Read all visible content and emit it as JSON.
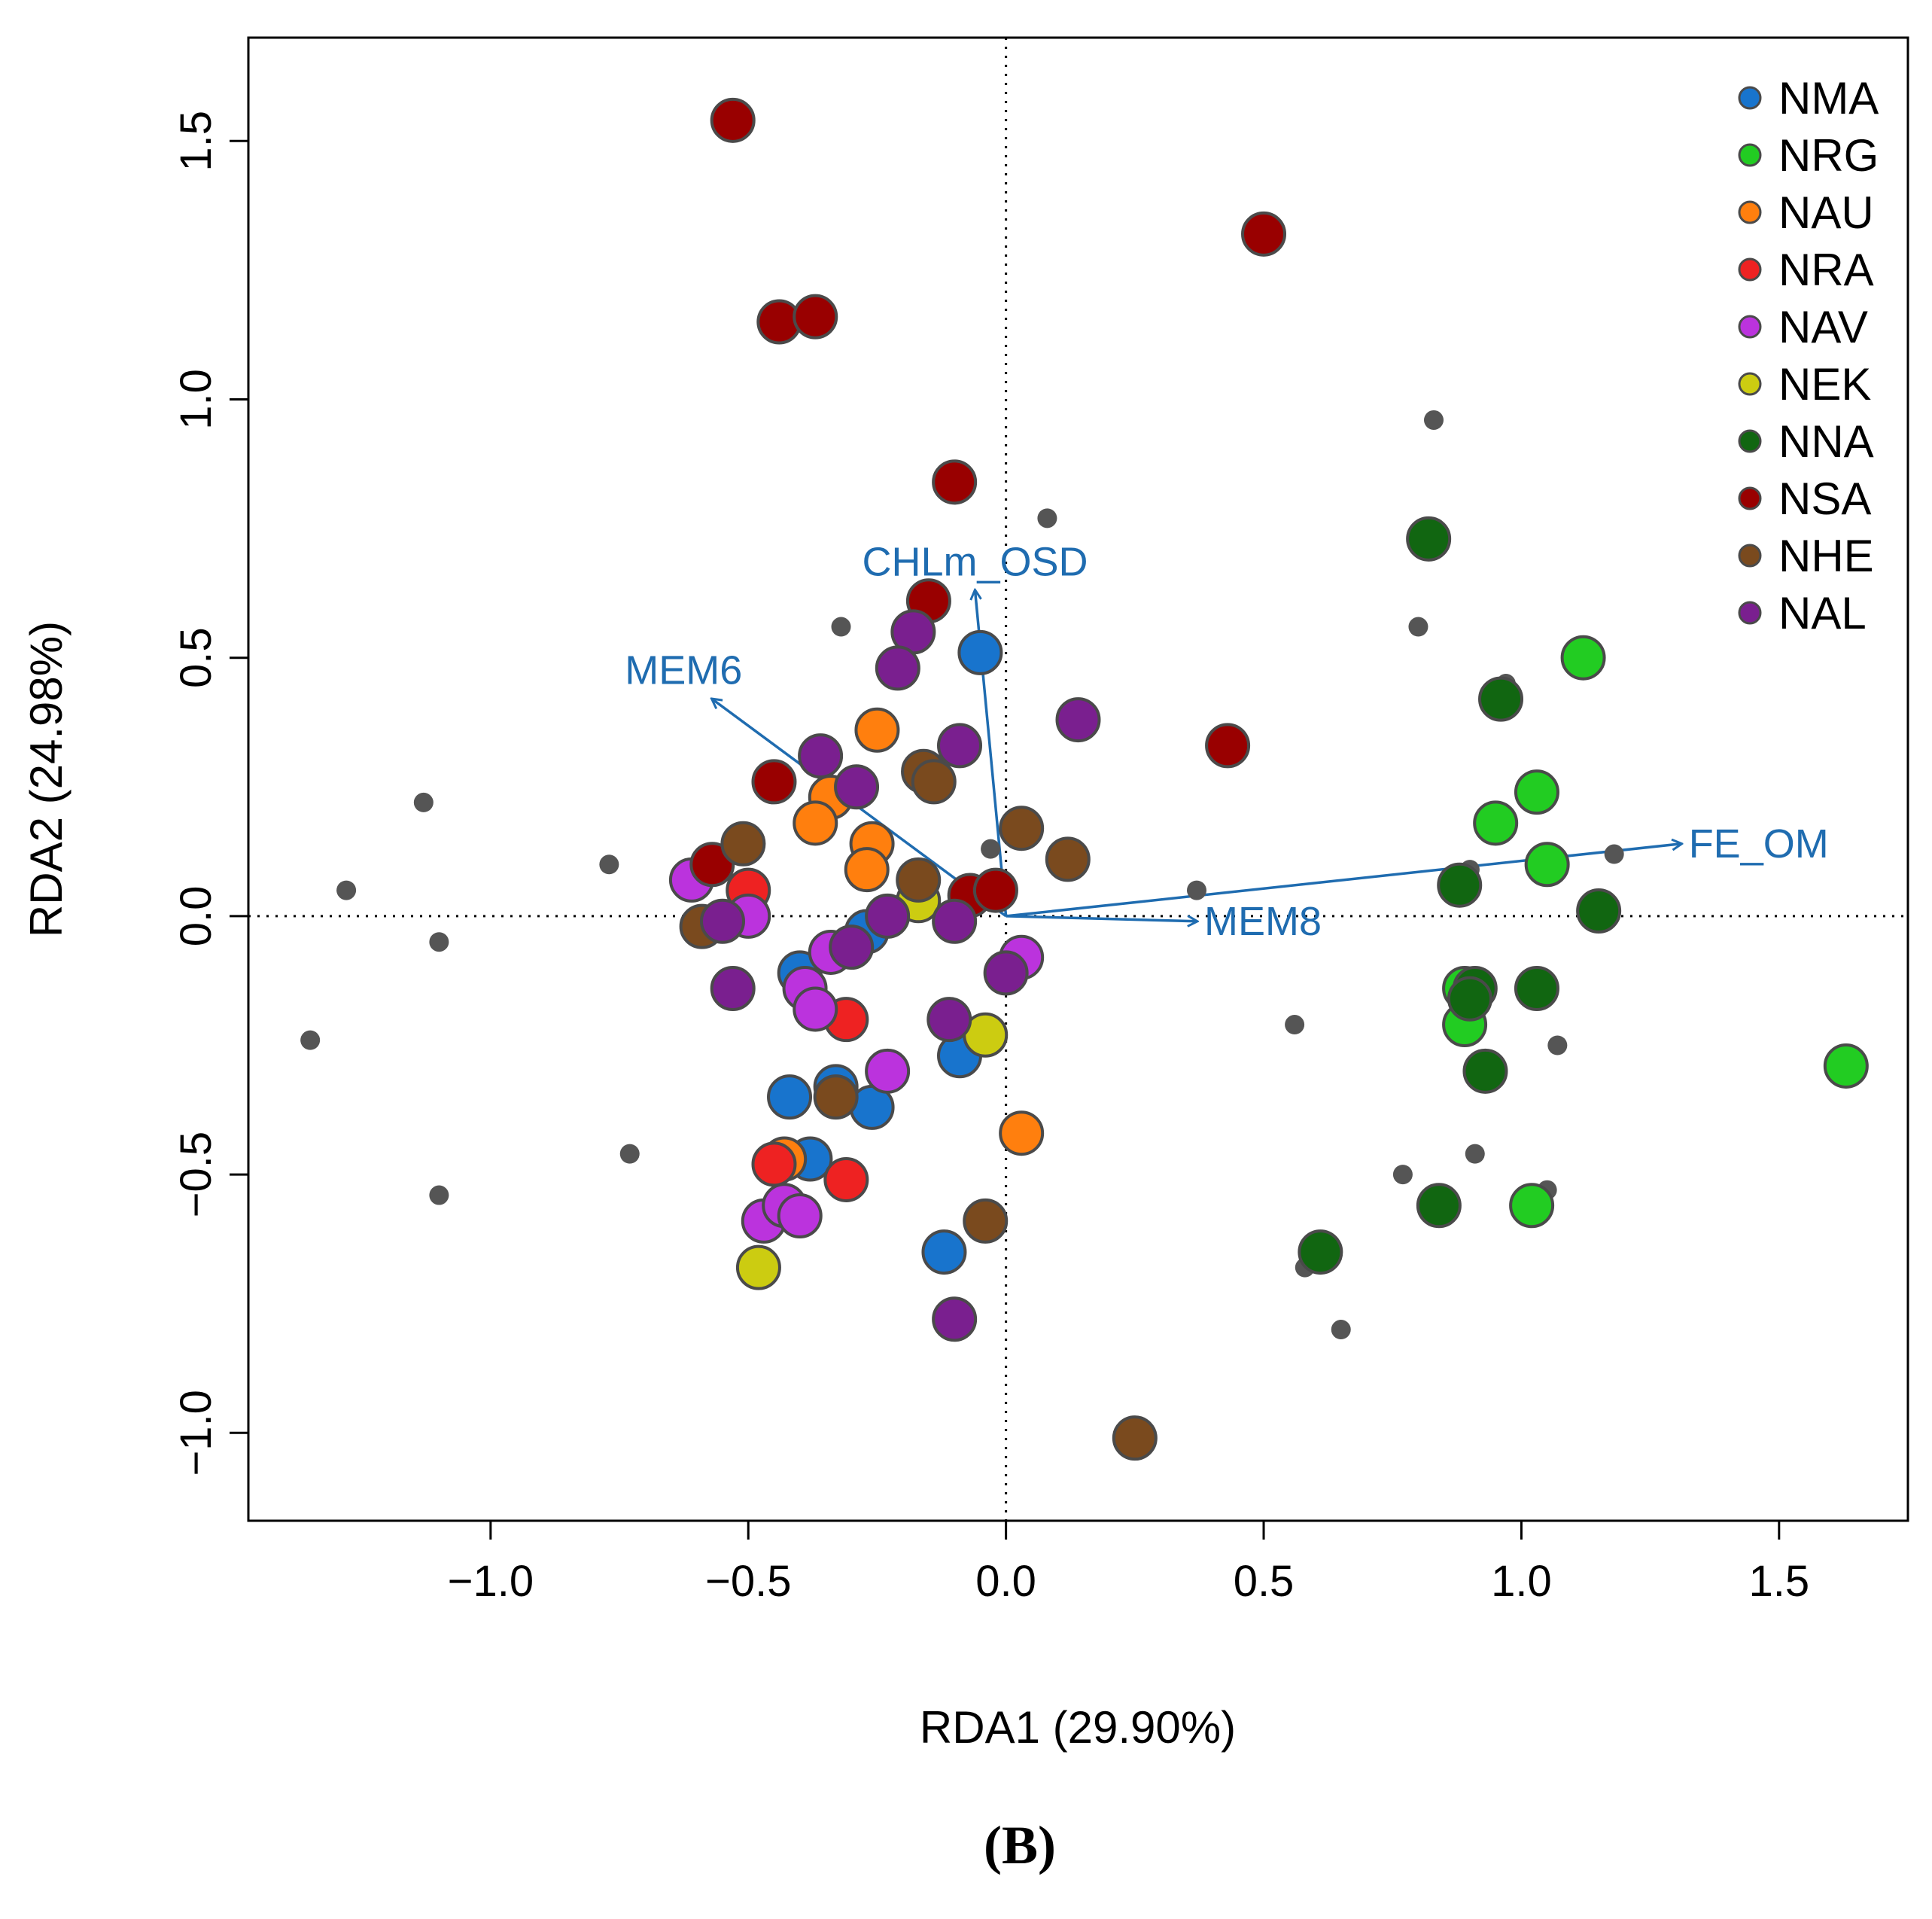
{
  "chart_data": {
    "type": "scatter",
    "title": "",
    "panel_label": "(B)",
    "xlabel": "RDA1 (29.90%)",
    "ylabel": "RDA2 (24.98%)",
    "xlim": [
      -1.47,
      1.75
    ],
    "ylim": [
      -1.17,
      1.7
    ],
    "xticks": [
      -1.0,
      -0.5,
      0.0,
      0.5,
      1.0,
      1.5
    ],
    "xtick_labels": [
      "−1.0",
      "−0.5",
      "0.0",
      "0.5",
      "1.0",
      "1.5"
    ],
    "yticks": [
      -1.0,
      -0.5,
      0.0,
      0.5,
      1.0,
      1.5
    ],
    "ytick_labels": [
      "−1.0",
      "−0.5",
      "0.0",
      "0.5",
      "1.0",
      "1.5"
    ],
    "grid": false,
    "reference_lines": {
      "x": 0,
      "y": 0,
      "style": "dotted"
    },
    "legend_position": "top-right",
    "point_color": "#555555",
    "vector_color": "#1f6cb0",
    "species_points": [
      [
        -1.35,
        -0.24
      ],
      [
        -1.28,
        0.05
      ],
      [
        -1.13,
        0.22
      ],
      [
        -1.1,
        -0.05
      ],
      [
        -1.1,
        -0.54
      ],
      [
        -0.77,
        0.1
      ],
      [
        -0.73,
        -0.46
      ],
      [
        -0.42,
        1.14
      ],
      [
        -0.32,
        0.56
      ],
      [
        -0.03,
        0.13
      ],
      [
        0.08,
        0.77
      ],
      [
        0.37,
        0.05
      ],
      [
        0.56,
        -0.21
      ],
      [
        0.58,
        -0.68
      ],
      [
        0.65,
        -0.8
      ],
      [
        0.77,
        -0.5
      ],
      [
        0.8,
        0.56
      ],
      [
        0.83,
        0.96
      ],
      [
        0.9,
        0.09
      ],
      [
        0.91,
        -0.46
      ],
      [
        0.97,
        0.45
      ],
      [
        1.05,
        -0.53
      ],
      [
        1.07,
        -0.25
      ],
      [
        1.18,
        0.12
      ]
    ],
    "series": [
      {
        "name": "NMA",
        "color": "#1874cd",
        "points": [
          [
            -0.05,
            0.51
          ],
          [
            -0.4,
            -0.11
          ],
          [
            -0.27,
            -0.03
          ],
          [
            -0.42,
            -0.35
          ],
          [
            -0.33,
            -0.33
          ],
          [
            -0.26,
            -0.37
          ],
          [
            -0.09,
            -0.27
          ],
          [
            -0.38,
            -0.47
          ],
          [
            -0.12,
            -0.65
          ]
        ]
      },
      {
        "name": "NRG",
        "color": "#22cc22",
        "points": [
          [
            1.12,
            0.5
          ],
          [
            1.03,
            0.24
          ],
          [
            0.95,
            0.18
          ],
          [
            1.05,
            0.1
          ],
          [
            0.89,
            -0.14
          ],
          [
            0.89,
            -0.21
          ],
          [
            1.63,
            -0.29
          ],
          [
            1.02,
            -0.56
          ]
        ]
      },
      {
        "name": "NAU",
        "color": "#ff7f0e",
        "points": [
          [
            -0.25,
            0.36
          ],
          [
            -0.34,
            0.23
          ],
          [
            -0.37,
            0.18
          ],
          [
            -0.26,
            0.14
          ],
          [
            -0.27,
            0.09
          ],
          [
            0.03,
            -0.42
          ],
          [
            -0.43,
            -0.47
          ]
        ]
      },
      {
        "name": "NRA",
        "color": "#ee2222",
        "points": [
          [
            -0.5,
            0.05
          ],
          [
            -0.31,
            -0.2
          ],
          [
            -0.45,
            -0.48
          ],
          [
            -0.31,
            -0.51
          ]
        ]
      },
      {
        "name": "NAV",
        "color": "#bb33dd",
        "points": [
          [
            -0.61,
            0.07
          ],
          [
            -0.5,
            0.0
          ],
          [
            -0.34,
            -0.07
          ],
          [
            -0.39,
            -0.14
          ],
          [
            -0.37,
            -0.18
          ],
          [
            0.03,
            -0.08
          ],
          [
            -0.23,
            -0.3
          ],
          [
            -0.47,
            -0.59
          ],
          [
            -0.43,
            -0.56
          ],
          [
            -0.4,
            -0.58
          ]
        ]
      },
      {
        "name": "NEK",
        "color": "#cccc11",
        "points": [
          [
            -0.17,
            0.03
          ],
          [
            -0.04,
            -0.23
          ],
          [
            -0.48,
            -0.68
          ]
        ]
      },
      {
        "name": "NNA",
        "color": "#116611",
        "points": [
          [
            0.82,
            0.73
          ],
          [
            0.96,
            0.42
          ],
          [
            0.88,
            0.06
          ],
          [
            1.15,
            0.01
          ],
          [
            0.91,
            -0.14
          ],
          [
            1.03,
            -0.14
          ],
          [
            0.9,
            -0.16
          ],
          [
            0.93,
            -0.3
          ],
          [
            0.84,
            -0.56
          ],
          [
            0.61,
            -0.65
          ]
        ]
      },
      {
        "name": "NSA",
        "color": "#990000",
        "points": [
          [
            -0.53,
            1.54
          ],
          [
            -0.44,
            1.15
          ],
          [
            -0.37,
            1.16
          ],
          [
            0.5,
            1.32
          ],
          [
            -0.1,
            0.84
          ],
          [
            -0.15,
            0.61
          ],
          [
            -0.45,
            0.26
          ],
          [
            0.43,
            0.33
          ],
          [
            -0.57,
            0.1
          ],
          [
            -0.07,
            0.04
          ],
          [
            -0.02,
            0.05
          ]
        ]
      },
      {
        "name": "NHE",
        "color": "#7a4a1e",
        "points": [
          [
            -0.16,
            0.28
          ],
          [
            -0.14,
            0.26
          ],
          [
            0.03,
            0.17
          ],
          [
            0.12,
            0.11
          ],
          [
            -0.51,
            0.14
          ],
          [
            -0.17,
            0.07
          ],
          [
            -0.59,
            -0.02
          ],
          [
            -0.33,
            -0.35
          ],
          [
            0.25,
            -1.01
          ],
          [
            -0.04,
            -0.59
          ]
        ]
      },
      {
        "name": "NAL",
        "color": "#7a1f8f",
        "points": [
          [
            -0.18,
            0.55
          ],
          [
            -0.21,
            0.48
          ],
          [
            0.14,
            0.38
          ],
          [
            -0.09,
            0.33
          ],
          [
            -0.36,
            0.31
          ],
          [
            -0.29,
            0.25
          ],
          [
            -0.23,
            0.0
          ],
          [
            -0.1,
            -0.01
          ],
          [
            -0.55,
            -0.01
          ],
          [
            -0.3,
            -0.06
          ],
          [
            -0.53,
            -0.14
          ],
          [
            -0.11,
            -0.2
          ],
          [
            -0.1,
            -0.78
          ],
          [
            0.0,
            -0.11
          ]
        ]
      }
    ],
    "vectors": [
      {
        "name": "CHLm_OSD",
        "x": -0.06,
        "y": 0.63,
        "label_anchor": "middle"
      },
      {
        "name": "MEM6",
        "x": -0.57,
        "y": 0.42,
        "label_anchor": "end"
      },
      {
        "name": "FE_OM",
        "x": 1.31,
        "y": 0.14,
        "label_anchor": "start"
      },
      {
        "name": "MEM8",
        "x": 0.37,
        "y": -0.01,
        "label_anchor": "start"
      }
    ]
  }
}
